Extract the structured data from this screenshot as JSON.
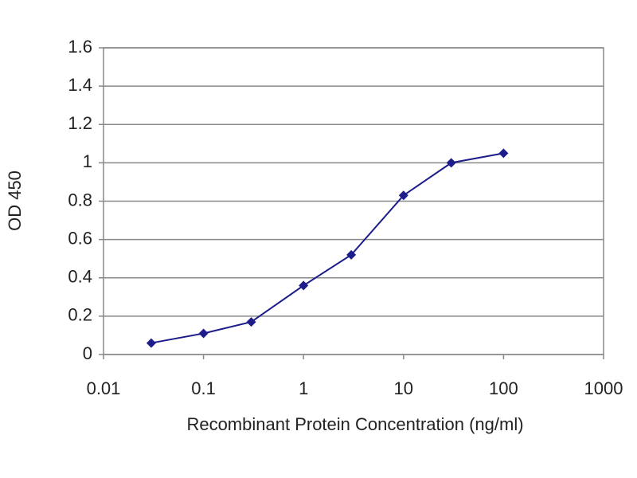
{
  "chart_data": {
    "type": "line",
    "x_label": "Recombinant Protein Concentration (ng/ml)",
    "y_label": "OD 450",
    "x": [
      0.03,
      0.1,
      0.3,
      1,
      3,
      10,
      30,
      100
    ],
    "series": [
      {
        "color": "#1c1c8a",
        "values": [
          0.06,
          0.11,
          0.17,
          0.36,
          0.52,
          0.83,
          1.0,
          1.05
        ]
      }
    ],
    "xlim": [
      0.01,
      1000
    ],
    "xticks": [
      0.01,
      0.1,
      1,
      10,
      100,
      1000
    ],
    "xscale": "log",
    "ylim": [
      0,
      1.6
    ],
    "yticks": [
      0,
      0.2,
      0.4,
      0.6,
      0.8,
      1,
      1.2,
      1.4,
      1.6
    ],
    "grid": true
  }
}
